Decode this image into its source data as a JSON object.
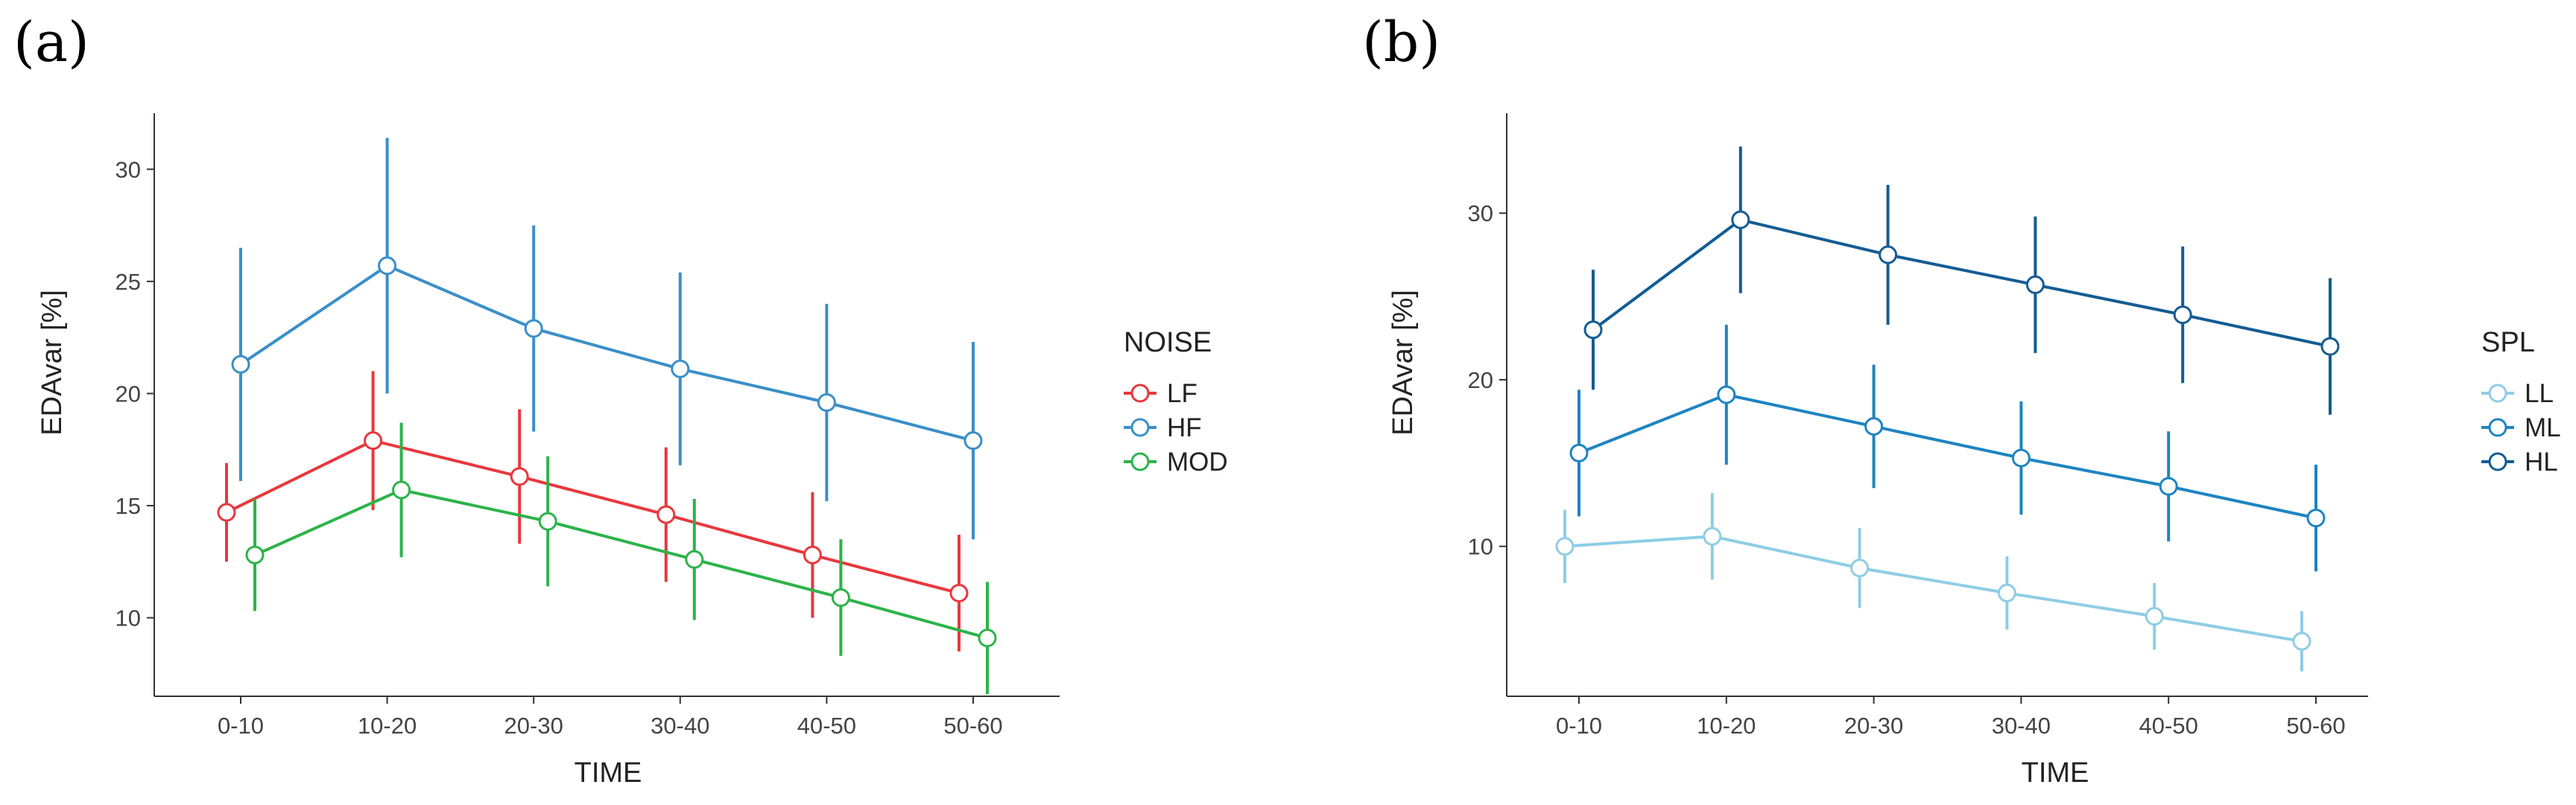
{
  "chart_data": [
    {
      "type": "line",
      "panel_label": "(a)",
      "xlabel": "TIME",
      "ylabel": "EDAvar [%]",
      "categories": [
        "0-10",
        "10-20",
        "20-30",
        "30-40",
        "40-50",
        "50-60"
      ],
      "ylim": [
        6.5,
        32.5
      ],
      "yticks": [
        10,
        15,
        20,
        25,
        30
      ],
      "legend_title": "NOISE",
      "legend_position": "right",
      "series": [
        {
          "name": "LF",
          "color": "#e8383d",
          "values": [
            14.7,
            17.9,
            16.3,
            14.6,
            12.8,
            11.1
          ],
          "err": [
            2.2,
            3.1,
            3.0,
            3.0,
            2.8,
            2.6
          ]
        },
        {
          "name": "HF",
          "color": "#3b8fc8",
          "values": [
            21.3,
            25.7,
            22.9,
            21.1,
            19.6,
            17.9
          ],
          "err": [
            5.2,
            5.7,
            4.6,
            4.3,
            4.4,
            4.4
          ]
        },
        {
          "name": "MOD",
          "color": "#2db34a",
          "values": [
            12.8,
            15.7,
            14.3,
            12.6,
            10.9,
            9.1
          ],
          "err": [
            2.5,
            3.0,
            2.9,
            2.7,
            2.6,
            2.5
          ]
        }
      ]
    },
    {
      "type": "line",
      "panel_label": "(b)",
      "xlabel": "TIME",
      "ylabel": "EDAvar [%]",
      "categories": [
        "0-10",
        "10-20",
        "20-30",
        "30-40",
        "40-50",
        "50-60"
      ],
      "ylim": [
        1.0,
        36.0
      ],
      "yticks": [
        10,
        20,
        30
      ],
      "legend_title": "SPL",
      "legend_position": "right",
      "series": [
        {
          "name": "LL",
          "color": "#8ecde6",
          "values": [
            10.0,
            10.6,
            8.7,
            7.2,
            5.8,
            4.3
          ],
          "err": [
            2.2,
            2.6,
            2.4,
            2.2,
            2.0,
            1.8
          ]
        },
        {
          "name": "ML",
          "color": "#1e84c2",
          "values": [
            15.6,
            19.1,
            17.2,
            15.3,
            13.6,
            11.7
          ],
          "err": [
            3.8,
            4.2,
            3.7,
            3.4,
            3.3,
            3.2
          ]
        },
        {
          "name": "HL",
          "color": "#145c93",
          "values": [
            23.0,
            29.6,
            27.5,
            25.7,
            23.9,
            22.0
          ],
          "err": [
            3.6,
            4.4,
            4.2,
            4.1,
            4.1,
            4.1
          ]
        }
      ]
    }
  ]
}
